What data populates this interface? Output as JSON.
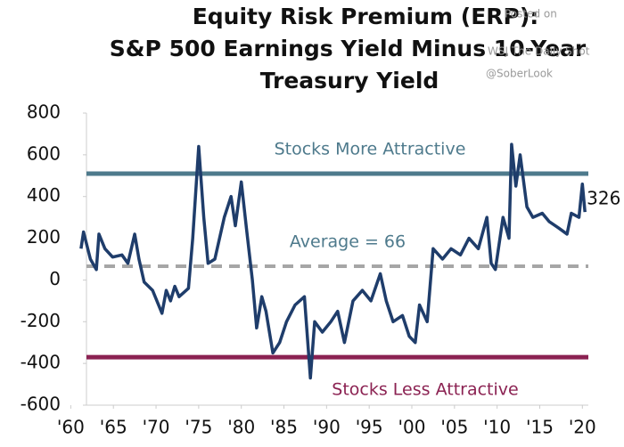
{
  "chart_data": {
    "type": "line",
    "title_lines": [
      "Equity Risk Premium (ERP):",
      "S&P 500 Earnings Yield Minus 10-Year",
      "Treasury Yield"
    ],
    "watermark": [
      "Posted on",
      "WSJ The Daily Shot",
      "@SoberLook"
    ],
    "xlim": [
      1960.9,
      2020.7
    ],
    "ylim": [
      -600,
      800
    ],
    "xticks": [
      {
        "value": 1960,
        "label": "'60"
      },
      {
        "value": 1965,
        "label": "'65"
      },
      {
        "value": 1970,
        "label": "'70"
      },
      {
        "value": 1975,
        "label": "'75"
      },
      {
        "value": 1980,
        "label": "'80"
      },
      {
        "value": 1985,
        "label": "'85"
      },
      {
        "value": 1990,
        "label": "'90"
      },
      {
        "value": 1995,
        "label": "'95"
      },
      {
        "value": 2000,
        "label": "'00"
      },
      {
        "value": 2005,
        "label": "'05"
      },
      {
        "value": 2010,
        "label": "'10"
      },
      {
        "value": 2015,
        "label": "'15"
      },
      {
        "value": 2020,
        "label": "'20"
      }
    ],
    "yticks": [
      -600,
      -400,
      -200,
      0,
      200,
      400,
      600,
      800
    ],
    "reference_lines": [
      {
        "value": 510,
        "color": "#4e7a8c",
        "label": "Stocks More Attractive",
        "label_position": "above",
        "dashed": false
      },
      {
        "value": 66,
        "color": "#a6a6a6",
        "label": "Average = 66",
        "label_position": "above",
        "dashed": true
      },
      {
        "value": -370,
        "color": "#8b2252",
        "label": "Stocks Less Attractive",
        "label_position": "below",
        "dashed": false
      }
    ],
    "series": [
      {
        "name": "ERP",
        "color": "#1f3d6b",
        "end_label": true,
        "x": [
          1961.2,
          1961.5,
          1962.3,
          1963,
          1963.3,
          1964,
          1964.9,
          1966,
          1966.7,
          1967.5,
          1968,
          1968.6,
          1969.6,
          1970.7,
          1971.2,
          1971.7,
          1972.2,
          1972.7,
          1973.8,
          1974.3,
          1975,
          1975.6,
          1976.1,
          1976.9,
          1978,
          1978.8,
          1979.3,
          1980,
          1980.6,
          1981.3,
          1981.8,
          1982.4,
          1982.9,
          1983.7,
          1984.5,
          1985.3,
          1986.3,
          1987.4,
          1988.1,
          1988.6,
          1989.5,
          1990.5,
          1991.3,
          1992.1,
          1993.1,
          1994.2,
          1995.2,
          1996.3,
          1997,
          1997.8,
          1998.9,
          1999.7,
          2000.4,
          2000.9,
          2001.8,
          2002.5,
          2003.6,
          2004.6,
          2005.7,
          2006.7,
          2007.8,
          2008.8,
          2009.3,
          2009.8,
          2010.7,
          2011.4,
          2011.7,
          2012.2,
          2012.7,
          2013.5,
          2014.2,
          2015.3,
          2016.1,
          2017.2,
          2018.2,
          2018.7,
          2019.6,
          2020,
          2020.3
        ],
        "values": [
          150,
          230,
          100,
          50,
          220,
          150,
          110,
          120,
          80,
          220,
          100,
          -10,
          -50,
          -160,
          -50,
          -100,
          -30,
          -80,
          -40,
          200,
          640,
          300,
          80,
          100,
          300,
          400,
          260,
          470,
          250,
          0,
          -230,
          -80,
          -150,
          -350,
          -300,
          -200,
          -120,
          -80,
          -470,
          -200,
          -250,
          -200,
          -150,
          -300,
          -100,
          -50,
          -100,
          30,
          -100,
          -200,
          -170,
          -270,
          -300,
          -120,
          -200,
          150,
          100,
          150,
          120,
          200,
          150,
          300,
          80,
          50,
          300,
          200,
          650,
          450,
          600,
          350,
          300,
          320,
          280,
          250,
          220,
          320,
          300,
          460,
          326
        ]
      }
    ]
  }
}
